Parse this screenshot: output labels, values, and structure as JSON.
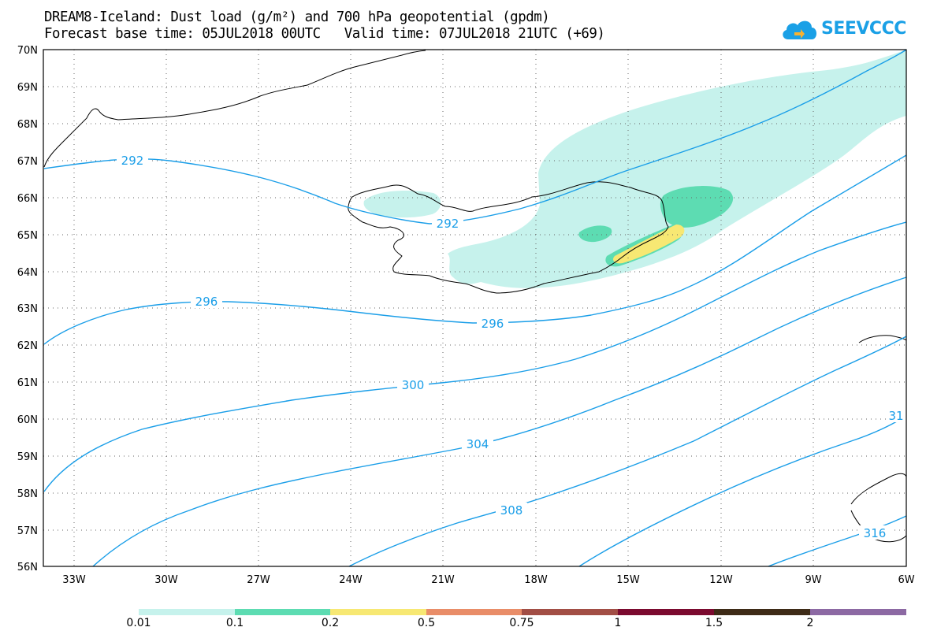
{
  "title": {
    "line1": "DREAM8-Iceland: Dust load (g/m²) and 700 hPa geopotential (gpdm)",
    "line2": "Forecast base time: 05JUL2018 00UTC   Valid time: 07JUL2018 21UTC (+69)"
  },
  "logo": {
    "text": "SEEVCCC",
    "icon": "cloud-logo-icon"
  },
  "map": {
    "lon_ticks": [
      "33W",
      "30W",
      "27W",
      "24W",
      "21W",
      "18W",
      "15W",
      "12W",
      "9W",
      "6W"
    ],
    "lat_ticks": [
      "70N",
      "69N",
      "68N",
      "67N",
      "66N",
      "65N",
      "64N",
      "63N",
      "62N",
      "61N",
      "60N",
      "59N",
      "58N",
      "57N",
      "56N"
    ],
    "grid": "dotted",
    "contour_color": "#1a9ee8",
    "coast_color": "#000000",
    "contour_labels": [
      "292",
      "292",
      "296",
      "296",
      "300",
      "304",
      "308",
      "31",
      "316"
    ]
  },
  "colorbar": {
    "colors": [
      "#c6f2ec",
      "#5ddcb2",
      "#f7e873",
      "#e98d68",
      "#a24e45",
      "#7b0a2f",
      "#3e2b17",
      "#8c69a3"
    ],
    "labels": [
      "0.01",
      "0.1",
      "0.2",
      "0.5",
      "0.75",
      "1",
      "1.5",
      "2"
    ]
  }
}
